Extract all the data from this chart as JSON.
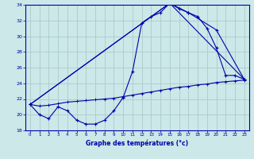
{
  "title": "Graphe des températures (°c)",
  "bg_color": "#cce8e8",
  "grid_color": "#aacccc",
  "line_color": "#0000aa",
  "xmin": -0.5,
  "xmax": 23.5,
  "ymin": 18,
  "ymax": 34,
  "xticks": [
    0,
    1,
    2,
    3,
    4,
    5,
    6,
    7,
    8,
    9,
    10,
    11,
    12,
    13,
    14,
    15,
    16,
    17,
    18,
    19,
    20,
    21,
    22,
    23
  ],
  "yticks": [
    18,
    20,
    22,
    24,
    26,
    28,
    30,
    32,
    34
  ],
  "line1_x": [
    0,
    1,
    2,
    3,
    4,
    5,
    6,
    7,
    8,
    9,
    10,
    11,
    12,
    13,
    14,
    15,
    16,
    17,
    18,
    19,
    20,
    21,
    22,
    23
  ],
  "line1_y": [
    21.3,
    20.0,
    19.5,
    21.0,
    20.5,
    19.3,
    18.8,
    18.8,
    19.3,
    20.5,
    22.2,
    25.5,
    31.7,
    32.5,
    33.0,
    34.2,
    33.5,
    33.0,
    32.5,
    31.0,
    28.5,
    25.0,
    25.0,
    24.5
  ],
  "line2_x": [
    0,
    15,
    17,
    20,
    23
  ],
  "line2_y": [
    21.3,
    34.2,
    33.0,
    30.8,
    24.5
  ],
  "line3_x": [
    0,
    15,
    23
  ],
  "line3_y": [
    21.3,
    34.2,
    24.5
  ],
  "line4_x": [
    0,
    1,
    2,
    3,
    4,
    5,
    6,
    7,
    8,
    9,
    10,
    11,
    12,
    13,
    14,
    15,
    16,
    17,
    18,
    19,
    20,
    21,
    22,
    23
  ],
  "line4_y": [
    21.3,
    21.1,
    21.2,
    21.4,
    21.6,
    21.7,
    21.8,
    21.9,
    22.0,
    22.1,
    22.3,
    22.5,
    22.7,
    22.9,
    23.1,
    23.3,
    23.5,
    23.6,
    23.8,
    23.9,
    24.1,
    24.2,
    24.3,
    24.4
  ]
}
